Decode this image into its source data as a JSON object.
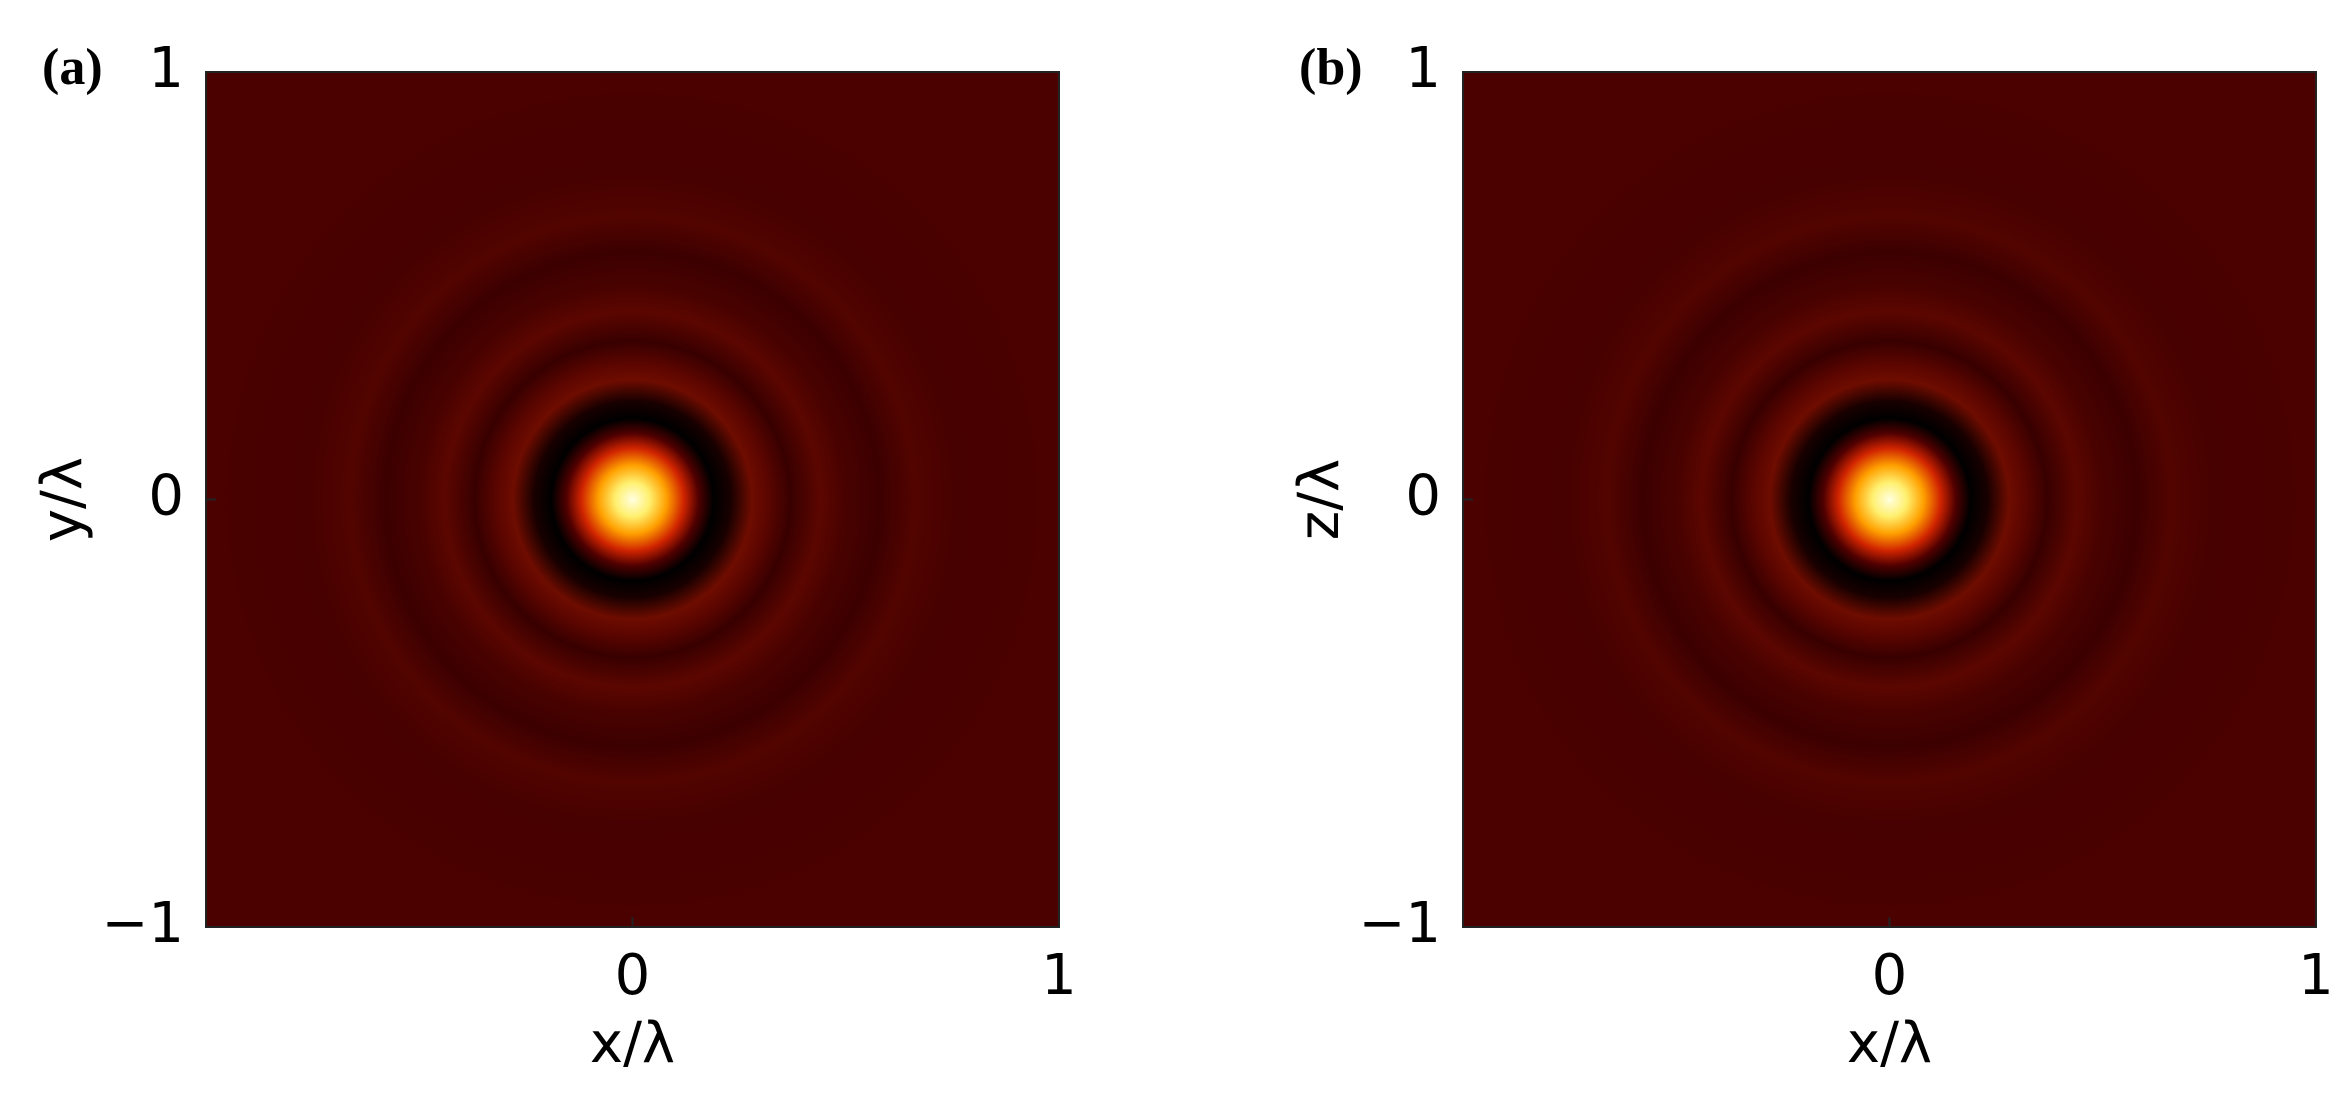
{
  "chart_data": [
    {
      "type": "heatmap",
      "label": "(a)",
      "x_label": "x/λ",
      "y_label": "y/λ",
      "xlim": [
        -1,
        1
      ],
      "ylim": [
        -1,
        1
      ],
      "xticks": [
        0,
        1
      ],
      "yticks": [
        {
          "value": -1,
          "label": "−1"
        },
        0,
        1
      ]
    },
    {
      "type": "heatmap",
      "label": "(b)",
      "x_label": "x/λ",
      "y_label": "z/λ",
      "xlim": [
        -1,
        1
      ],
      "ylim": [
        -1,
        1
      ],
      "xticks": [
        0,
        1
      ],
      "yticks": [
        {
          "value": -1,
          "label": "−1"
        },
        0,
        1
      ]
    }
  ]
}
